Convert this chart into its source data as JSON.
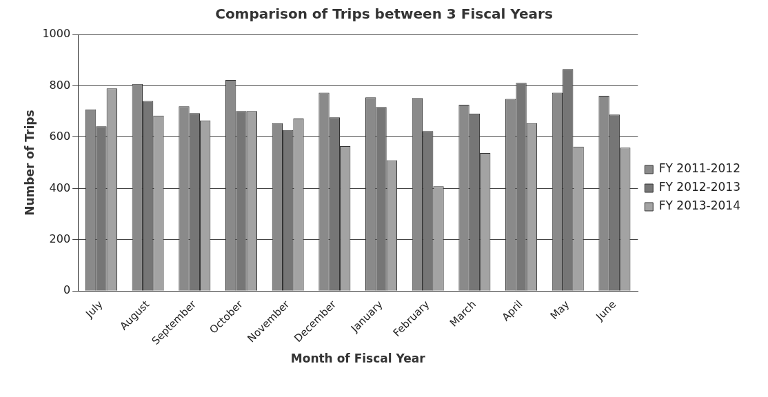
{
  "chart_data": {
    "type": "bar",
    "title": "Comparison of Trips between 3 Fiscal Years",
    "xlabel": "Month of Fiscal Year",
    "ylabel": "Number of Trips",
    "categories": [
      "July",
      "August",
      "September",
      "October",
      "November",
      "December",
      "January",
      "February",
      "March",
      "April",
      "May",
      "June"
    ],
    "series": [
      {
        "name": "FY 2011-2012",
        "color": "#8a8a8a",
        "values": [
          708,
          807,
          720,
          823,
          654,
          773,
          755,
          752,
          726,
          749,
          773,
          761
        ]
      },
      {
        "name": "FY 2012-2013",
        "color": "#767676",
        "values": [
          642,
          741,
          693,
          701,
          627,
          677,
          717,
          623,
          692,
          811,
          865,
          688
        ]
      },
      {
        "name": "FY 2013-2014",
        "color": "#a3a3a3",
        "values": [
          790,
          684,
          665,
          701,
          672,
          565,
          510,
          408,
          538,
          654,
          563,
          559
        ]
      }
    ],
    "ylim": [
      0,
      1000
    ],
    "yticks": [
      0,
      200,
      400,
      600,
      800,
      1000
    ],
    "grid": "y",
    "legend": "right"
  }
}
